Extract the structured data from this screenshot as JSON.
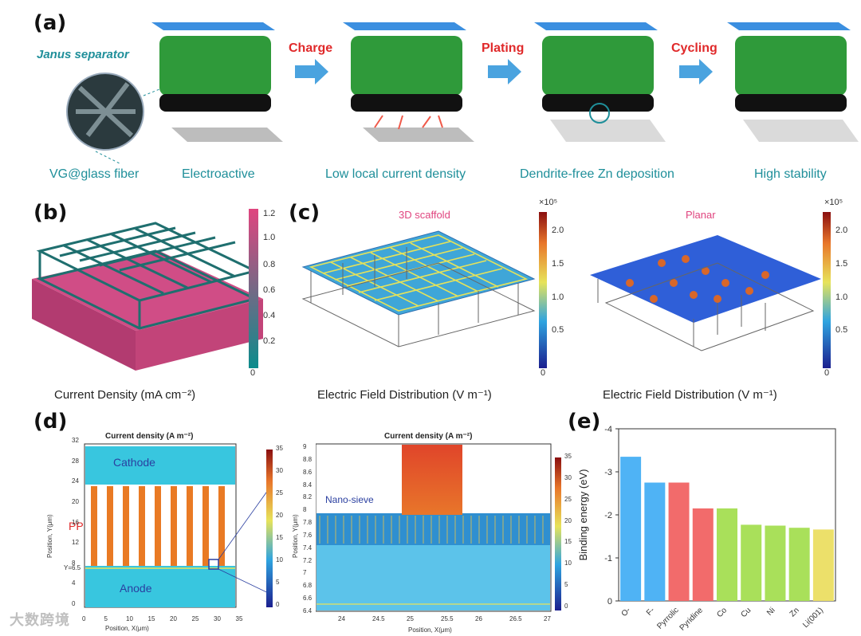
{
  "panel_a": {
    "label": "(a)",
    "janus_label": "Janus separator",
    "steps": [
      "Charge",
      "Plating",
      "Cycling"
    ],
    "captions": [
      "VG@glass fiber",
      "Electroactive",
      "Low local current density",
      "Dendrite-free Zn deposition",
      "High stability"
    ]
  },
  "panel_b": {
    "label": "(b)",
    "caption": "Current Density (mA cm⁻²)",
    "colorbar_ticks": [
      "1.2",
      "1.0",
      "0.8",
      "0.6",
      "0.4",
      "0.2",
      "0"
    ]
  },
  "panel_c": {
    "label": "(c)",
    "left_title": "3D scaffold",
    "right_title": "Planar",
    "caption_left": "Electric Field Distribution (V m⁻¹)",
    "caption_right": "Electric Field Distribution (V m⁻¹)",
    "colorbar_exp": "×10⁵",
    "colorbar_ticks": [
      "2.0",
      "1.5",
      "1.0",
      "0.5",
      "0"
    ]
  },
  "panel_d": {
    "label": "(d)",
    "left_title": "Current density (A m⁻²)",
    "right_title": "Current density (A m⁻²)",
    "cathode": "Cathode",
    "anode": "Anode",
    "pp": "PP",
    "y_marker": "Y=6.5",
    "nano_sieve": "Nano-sieve",
    "left_xlabel": "Position, X(μm)",
    "left_ylabel": "Position, Y(μm)",
    "right_xlabel": "Position, X(μm)",
    "right_ylabel": "Position, Y(μm)",
    "left_yticks": [
      "32",
      "28",
      "24",
      "20",
      "16",
      "12",
      "8",
      "4",
      "0"
    ],
    "left_xticks": [
      "0",
      "5",
      "10",
      "15",
      "20",
      "25",
      "30",
      "35"
    ],
    "left_cbar_ticks": [
      "35",
      "30",
      "25",
      "20",
      "15",
      "10",
      "5",
      "0"
    ],
    "right_yticks": [
      "9",
      "8.8",
      "8.6",
      "8.4",
      "8.2",
      "8",
      "7.8",
      "7.6",
      "7.4",
      "7.2",
      "7",
      "6.8",
      "6.6",
      "6.4"
    ],
    "right_xticks": [
      "24",
      "24.5",
      "25",
      "25.5",
      "26",
      "26.5",
      "27"
    ],
    "right_cbar_ticks": [
      "35",
      "30",
      "25",
      "20",
      "15",
      "10",
      "5",
      "0"
    ]
  },
  "panel_e": {
    "label": "(e)"
  },
  "watermark": "大数跨境",
  "chart_data": {
    "type": "bar",
    "title": "",
    "xlabel": "",
    "ylabel": "Binding energy (eV)",
    "categories": [
      "O-",
      "F-",
      "Pyrrolic",
      "Pyridine",
      "Co",
      "Cu",
      "Ni",
      "Zn",
      "Li(001)"
    ],
    "values": [
      -3.35,
      -2.75,
      -2.75,
      -2.15,
      -2.15,
      -1.77,
      -1.75,
      -1.7,
      -1.66
    ],
    "colors": [
      "#4fb3f5",
      "#4fb3f5",
      "#f26b6b",
      "#f26b6b",
      "#a9e05a",
      "#a9e05a",
      "#a9e05a",
      "#a9e05a",
      "#ece06a"
    ],
    "ylim": [
      0,
      -4
    ],
    "yticks": [
      "0",
      "-1",
      "-2",
      "-3",
      "-4"
    ],
    "grid": false
  }
}
